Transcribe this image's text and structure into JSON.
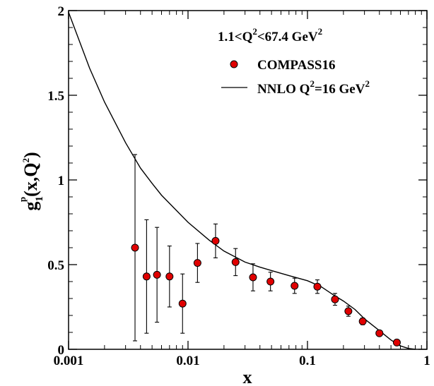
{
  "chart_data": {
    "type": "scatter",
    "xlabel": "x",
    "ylabel": {
      "base": "g",
      "sub": "1",
      "sup": "p",
      "arg": "(x,Q",
      "arg_sup": "2",
      "arg_close": ")"
    },
    "xscale": "log",
    "xlim": [
      0.001,
      1
    ],
    "ylim": [
      0,
      2
    ],
    "x_ticks": [
      0.001,
      0.01,
      0.1,
      1
    ],
    "x_tick_labels": [
      "0.001",
      "0.01",
      "0.1",
      "1"
    ],
    "y_ticks": [
      0,
      0.5,
      1,
      1.5,
      2
    ],
    "y_tick_labels": [
      "0",
      "0.5",
      "1",
      "1.5",
      "2"
    ],
    "legend_header": {
      "pre": "1.1<Q",
      "sup": "2",
      "mid": "<67.4 GeV",
      "sup2": "2"
    },
    "legend_position": "top-right",
    "series": [
      {
        "name": "COMPASS16",
        "kind": "points-with-errors",
        "color": "#e00000",
        "points": [
          {
            "x": 0.0036,
            "y": 0.6,
            "err": 0.55
          },
          {
            "x": 0.0045,
            "y": 0.43,
            "err": 0.335
          },
          {
            "x": 0.0055,
            "y": 0.44,
            "err": 0.28
          },
          {
            "x": 0.007,
            "y": 0.43,
            "err": 0.18
          },
          {
            "x": 0.009,
            "y": 0.27,
            "err": 0.175
          },
          {
            "x": 0.012,
            "y": 0.51,
            "err": 0.115
          },
          {
            "x": 0.017,
            "y": 0.64,
            "err": 0.1
          },
          {
            "x": 0.025,
            "y": 0.515,
            "err": 0.08
          },
          {
            "x": 0.035,
            "y": 0.425,
            "err": 0.08
          },
          {
            "x": 0.049,
            "y": 0.4,
            "err": 0.055
          },
          {
            "x": 0.078,
            "y": 0.375,
            "err": 0.045
          },
          {
            "x": 0.121,
            "y": 0.37,
            "err": 0.04
          },
          {
            "x": 0.17,
            "y": 0.295,
            "err": 0.035
          },
          {
            "x": 0.22,
            "y": 0.225,
            "err": 0.03
          },
          {
            "x": 0.29,
            "y": 0.165,
            "err": 0.02
          },
          {
            "x": 0.4,
            "y": 0.095,
            "err": 0.012
          },
          {
            "x": 0.56,
            "y": 0.04,
            "err": 0.008
          }
        ]
      },
      {
        "name": {
          "pre": "NNLO Q",
          "sup": "2",
          "post": "=16 GeV",
          "sup2": "2"
        },
        "kind": "line",
        "color": "#000000",
        "points": [
          [
            0.001,
            1.99
          ],
          [
            0.0015,
            1.66
          ],
          [
            0.002,
            1.46
          ],
          [
            0.003,
            1.22
          ],
          [
            0.004,
            1.07
          ],
          [
            0.005,
            0.98
          ],
          [
            0.006,
            0.91
          ],
          [
            0.008,
            0.82
          ],
          [
            0.01,
            0.75
          ],
          [
            0.015,
            0.645
          ],
          [
            0.02,
            0.58
          ],
          [
            0.03,
            0.515
          ],
          [
            0.04,
            0.485
          ],
          [
            0.05,
            0.465
          ],
          [
            0.07,
            0.435
          ],
          [
            0.1,
            0.405
          ],
          [
            0.13,
            0.37
          ],
          [
            0.17,
            0.315
          ],
          [
            0.2,
            0.285
          ],
          [
            0.25,
            0.235
          ],
          [
            0.3,
            0.18
          ],
          [
            0.4,
            0.11
          ],
          [
            0.5,
            0.055
          ],
          [
            0.6,
            0.02
          ],
          [
            0.7,
            0.005
          ],
          [
            0.8,
            0.0
          ]
        ]
      }
    ]
  }
}
